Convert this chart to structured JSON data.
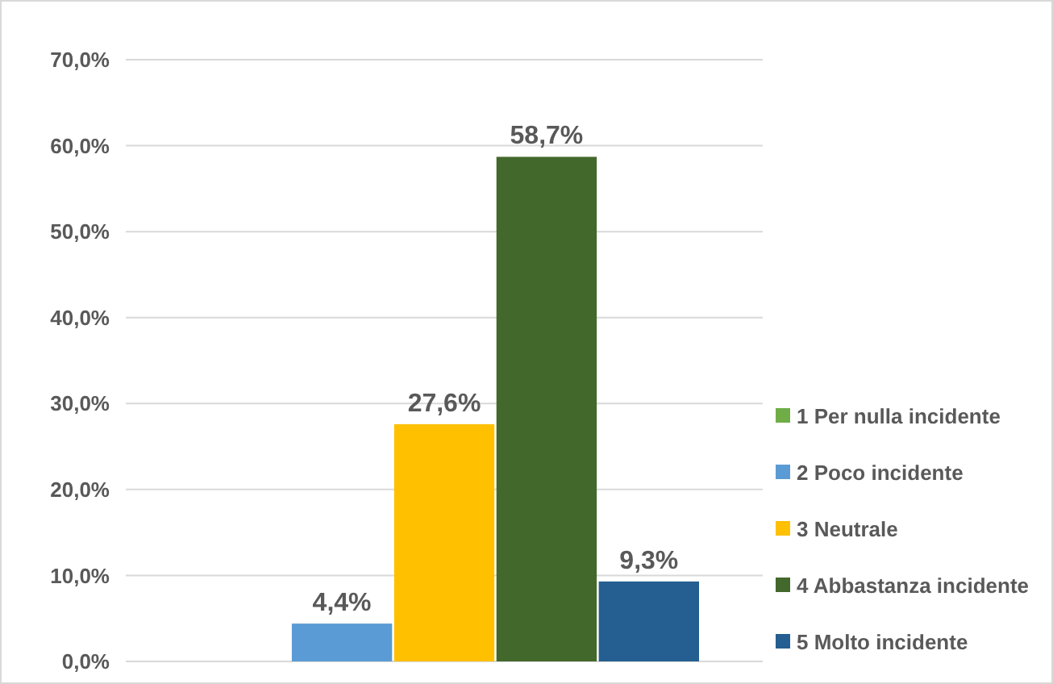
{
  "chart_data": {
    "type": "bar",
    "categories": [
      null
    ],
    "series": [
      {
        "name": "1 Per nulla incidente",
        "color": "#70ad47",
        "values": [
          0
        ],
        "value_labels": [
          null
        ]
      },
      {
        "name": "2 Poco incidente",
        "color": "#5b9bd5",
        "values": [
          4.4
        ],
        "value_labels": [
          "4,4%"
        ]
      },
      {
        "name": "3 Neutrale",
        "color": "#ffc000",
        "values": [
          27.6
        ],
        "value_labels": [
          "27,6%"
        ]
      },
      {
        "name": "4 Abbastanza incidente",
        "color": "#43682b",
        "values": [
          58.7
        ],
        "value_labels": [
          "58,7%"
        ]
      },
      {
        "name": "5 Molto incidente",
        "color": "#255e91",
        "values": [
          9.3
        ],
        "value_labels": [
          "9,3%"
        ]
      }
    ],
    "ylim": [
      0,
      70
    ],
    "yticks": [
      {
        "value": 0,
        "label": "0,0%"
      },
      {
        "value": 10,
        "label": "10,0%"
      },
      {
        "value": 20,
        "label": "20,0%"
      },
      {
        "value": 30,
        "label": "30,0%"
      },
      {
        "value": 40,
        "label": "40,0%"
      },
      {
        "value": 50,
        "label": "50,0%"
      },
      {
        "value": 60,
        "label": "60,0%"
      },
      {
        "value": 70,
        "label": "70,0%"
      }
    ],
    "grid": "y",
    "legend": "right"
  }
}
